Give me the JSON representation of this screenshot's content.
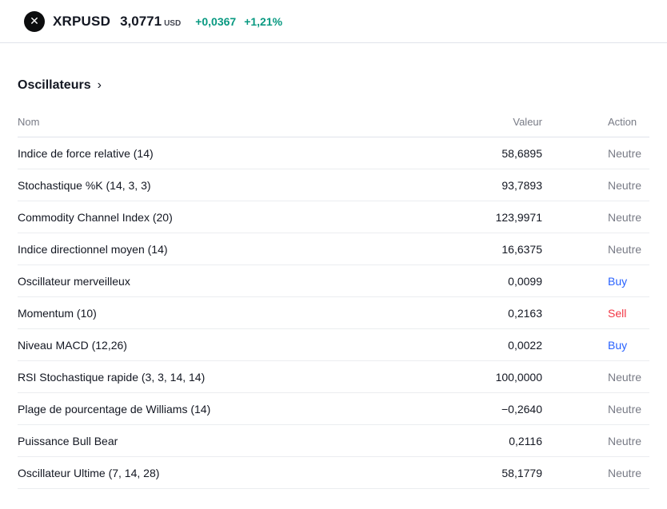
{
  "header": {
    "symbol": "XRPUSD",
    "price": "3,0771",
    "currency": "USD",
    "change_abs": "+0,0367",
    "change_pct": "+1,21%"
  },
  "section": {
    "title": "Oscillateurs",
    "chevron": "›"
  },
  "table": {
    "columns": {
      "name": "Nom",
      "value": "Valeur",
      "action": "Action"
    },
    "rows": [
      {
        "name": "Indice de force relative (14)",
        "value": "58,6895",
        "action": "Neutre",
        "action_type": "neutral"
      },
      {
        "name": "Stochastique %K (14, 3, 3)",
        "value": "93,7893",
        "action": "Neutre",
        "action_type": "neutral"
      },
      {
        "name": "Commodity Channel Index (20)",
        "value": "123,9971",
        "action": "Neutre",
        "action_type": "neutral"
      },
      {
        "name": "Indice directionnel moyen (14)",
        "value": "16,6375",
        "action": "Neutre",
        "action_type": "neutral"
      },
      {
        "name": "Oscillateur merveilleux",
        "value": "0,0099",
        "action": "Buy",
        "action_type": "buy"
      },
      {
        "name": "Momentum (10)",
        "value": "0,2163",
        "action": "Sell",
        "action_type": "sell"
      },
      {
        "name": "Niveau MACD (12,26)",
        "value": "0,0022",
        "action": "Buy",
        "action_type": "buy"
      },
      {
        "name": "RSI Stochastique rapide (3, 3, 14, 14)",
        "value": "100,0000",
        "action": "Neutre",
        "action_type": "neutral"
      },
      {
        "name": "Plage de pourcentage de Williams (14)",
        "value": "−0,2640",
        "action": "Neutre",
        "action_type": "neutral"
      },
      {
        "name": "Puissance Bull Bear",
        "value": "0,2116",
        "action": "Neutre",
        "action_type": "neutral"
      },
      {
        "name": "Oscillateur Ultime (7, 14, 28)",
        "value": "58,1779",
        "action": "Neutre",
        "action_type": "neutral"
      }
    ]
  },
  "icons": {
    "logo_glyph": "✕"
  },
  "colors": {
    "up": "#089981",
    "buy": "#2962ff",
    "sell": "#f23645",
    "neutral": "#787b86"
  }
}
